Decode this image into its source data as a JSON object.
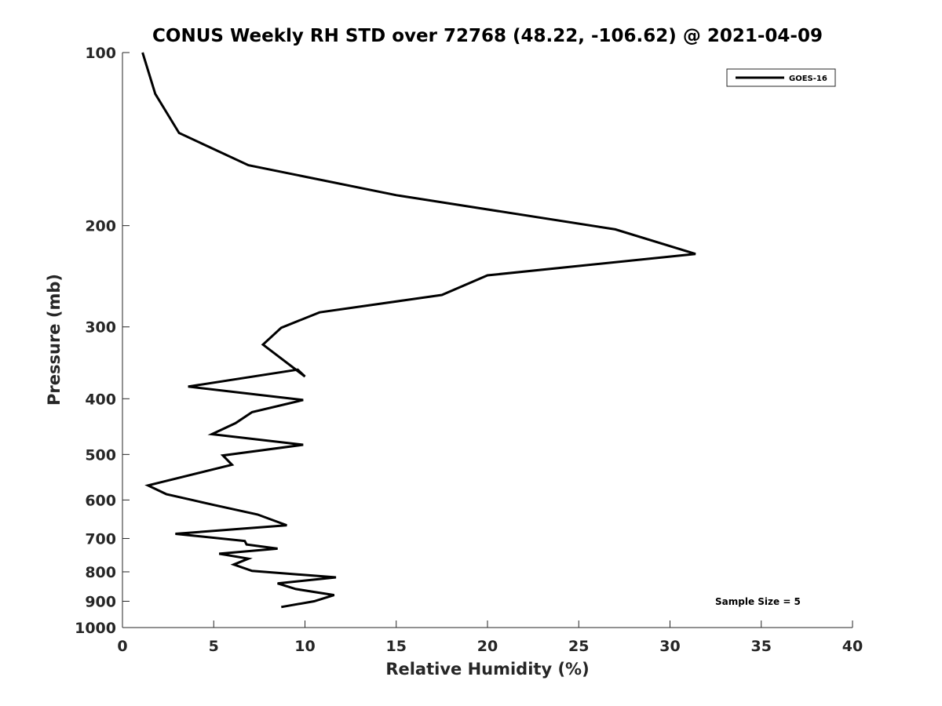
{
  "chart_data": {
    "type": "line",
    "title": "CONUS Weekly RH STD over 72768 (48.22, -106.62) @ 2021-04-09",
    "xlabel": "Relative Humidity (%)",
    "ylabel": "Pressure (mb)",
    "xlim": [
      0,
      40
    ],
    "ylim": [
      100,
      1000
    ],
    "y_scale": "log",
    "y_reversed": true,
    "grid": false,
    "legend_position": "top-right",
    "x_ticks": [
      0,
      5,
      10,
      15,
      20,
      25,
      30,
      35,
      40
    ],
    "y_ticks": [
      100,
      200,
      300,
      400,
      500,
      600,
      700,
      800,
      900,
      1000
    ],
    "series": [
      {
        "name": "GOES-16",
        "color": "#000000",
        "x": [
          1.1,
          1.8,
          3.1,
          6.9,
          15.0,
          27.0,
          31.4,
          20.0,
          17.5,
          10.8,
          8.7,
          7.7,
          10.0,
          9.6,
          3.6,
          9.9,
          7.1,
          6.2,
          4.9,
          9.9,
          5.5,
          6.0,
          1.4,
          2.4,
          5.0,
          7.4,
          9.0,
          2.9,
          6.7,
          6.8,
          8.5,
          5.3,
          6.9,
          6.1,
          7.1,
          11.7,
          8.5,
          9.5,
          11.6,
          10.5,
          8.7
        ],
        "y": [
          100,
          118,
          138,
          157,
          177,
          203,
          224,
          244,
          264,
          283,
          301,
          322,
          366,
          356,
          381,
          402,
          422,
          441,
          461,
          481,
          502,
          521,
          566,
          586,
          612,
          636,
          664,
          687,
          707,
          717,
          729,
          744,
          759,
          777,
          797,
          818,
          838,
          857,
          878,
          900,
          921
        ]
      }
    ],
    "annotations": [
      {
        "text": "Sample Size = 5"
      }
    ]
  }
}
